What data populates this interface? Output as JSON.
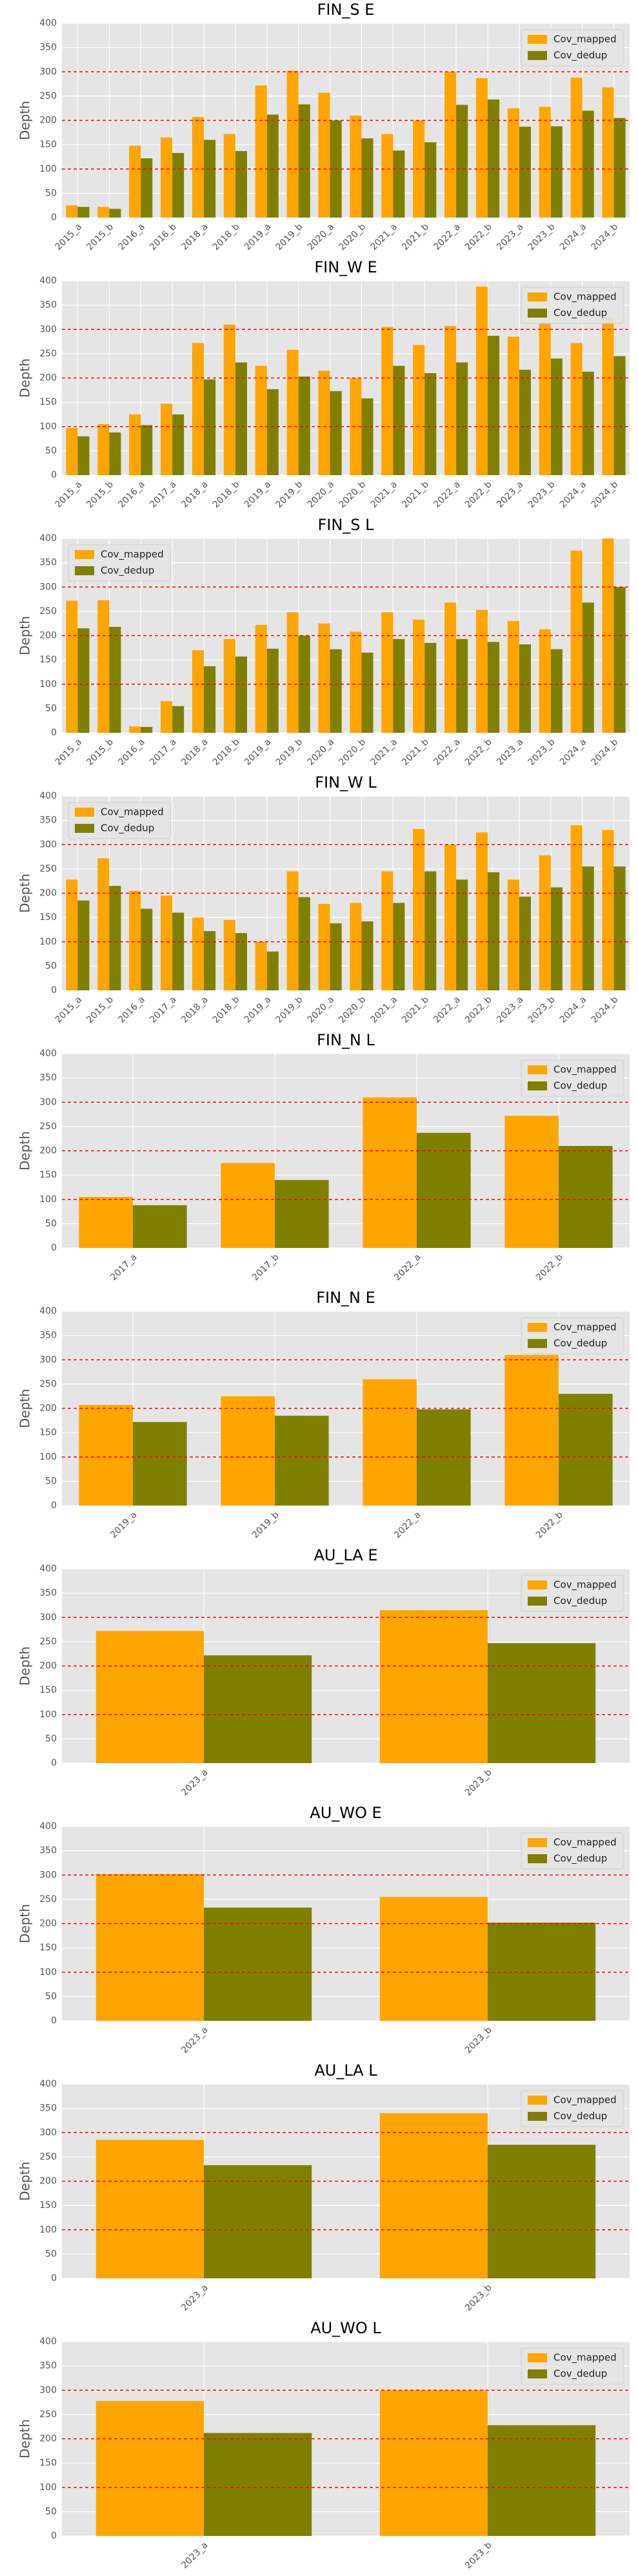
{
  "chart_data": [
    {
      "type": "bar",
      "title": "FIN_S E",
      "ylabel": "Depth",
      "legend": "upper right",
      "grid": true,
      "ylim": [
        0,
        400
      ],
      "yticks": [
        0,
        50,
        100,
        150,
        200,
        250,
        300,
        350,
        400
      ],
      "reference_lines": [
        100,
        200,
        300
      ],
      "reference_line_color": "#ff0000",
      "categories": [
        "2015_a",
        "2015_b",
        "2016_a",
        "2016_b",
        "2018_a",
        "2018_b",
        "2019_a",
        "2019_b",
        "2020_a",
        "2020_b",
        "2021_a",
        "2021_b",
        "2022_a",
        "2022_b",
        "2023_a",
        "2023_b",
        "2024_a",
        "2024_b"
      ],
      "series": [
        {
          "name": "Cov_mapped",
          "color": "#ffa500",
          "values": [
            25,
            22,
            148,
            165,
            207,
            172,
            272,
            302,
            257,
            210,
            172,
            200,
            300,
            287,
            225,
            228,
            288,
            268
          ]
        },
        {
          "name": "Cov_dedup",
          "color": "#808000",
          "values": [
            22,
            18,
            122,
            133,
            160,
            137,
            212,
            233,
            200,
            163,
            138,
            155,
            232,
            243,
            187,
            188,
            220,
            205
          ]
        }
      ]
    },
    {
      "type": "bar",
      "title": "FIN_W E",
      "ylabel": "Depth",
      "legend": "upper right",
      "grid": true,
      "ylim": [
        0,
        400
      ],
      "yticks": [
        0,
        50,
        100,
        150,
        200,
        250,
        300,
        350,
        400
      ],
      "reference_lines": [
        100,
        200,
        300
      ],
      "reference_line_color": "#ff0000",
      "categories": [
        "2015_a",
        "2015_b",
        "2016_a",
        "2017_a",
        "2018_a",
        "2018_b",
        "2019_a",
        "2019_b",
        "2020_a",
        "2020_b",
        "2021_a",
        "2021_b",
        "2022_a",
        "2022_b",
        "2023_a",
        "2023_b",
        "2024_a",
        "2024_b"
      ],
      "series": [
        {
          "name": "Cov_mapped",
          "color": "#ffa500",
          "values": [
            97,
            105,
            125,
            147,
            272,
            310,
            225,
            258,
            215,
            200,
            305,
            268,
            307,
            388,
            285,
            313,
            272,
            325
          ]
        },
        {
          "name": "Cov_dedup",
          "color": "#808000",
          "values": [
            80,
            88,
            103,
            125,
            197,
            232,
            177,
            203,
            173,
            158,
            225,
            210,
            232,
            287,
            217,
            240,
            213,
            245
          ]
        }
      ]
    },
    {
      "type": "bar",
      "title": "FIN_S L",
      "ylabel": "Depth",
      "legend": "upper left",
      "grid": true,
      "ylim": [
        0,
        400
      ],
      "yticks": [
        0,
        50,
        100,
        150,
        200,
        250,
        300,
        350,
        400
      ],
      "reference_lines": [
        100,
        200,
        300
      ],
      "reference_line_color": "#ff0000",
      "categories": [
        "2015_a",
        "2015_b",
        "2016_a",
        "2017_a",
        "2018_a",
        "2018_b",
        "2019_a",
        "2019_b",
        "2020_a",
        "2020_b",
        "2021_a",
        "2021_b",
        "2022_a",
        "2022_b",
        "2023_a",
        "2023_b",
        "2024_a",
        "2024_b"
      ],
      "series": [
        {
          "name": "Cov_mapped",
          "color": "#ffa500",
          "values": [
            272,
            273,
            13,
            65,
            170,
            193,
            222,
            248,
            225,
            208,
            248,
            233,
            268,
            253,
            230,
            213,
            375,
            400
          ]
        },
        {
          "name": "Cov_dedup",
          "color": "#808000",
          "values": [
            215,
            218,
            12,
            55,
            137,
            157,
            173,
            200,
            172,
            165,
            193,
            185,
            193,
            187,
            182,
            172,
            268,
            300
          ]
        }
      ]
    },
    {
      "type": "bar",
      "title": "FIN_W L",
      "ylabel": "Depth",
      "legend": "upper left",
      "grid": true,
      "ylim": [
        0,
        400
      ],
      "yticks": [
        0,
        50,
        100,
        150,
        200,
        250,
        300,
        350,
        400
      ],
      "reference_lines": [
        100,
        200,
        300
      ],
      "reference_line_color": "#ff0000",
      "categories": [
        "2015_a",
        "2015_b",
        "2016_a",
        "2017_a",
        "2018_a",
        "2018_b",
        "2019_a",
        "2019_b",
        "2020_a",
        "2020_b",
        "2021_a",
        "2021_b",
        "2022_a",
        "2022_b",
        "2023_a",
        "2023_b",
        "2024_a",
        "2024_b"
      ],
      "series": [
        {
          "name": "Cov_mapped",
          "color": "#ffa500",
          "values": [
            228,
            272,
            205,
            195,
            150,
            145,
            100,
            245,
            178,
            180,
            245,
            332,
            300,
            325,
            228,
            278,
            340,
            330
          ]
        },
        {
          "name": "Cov_dedup",
          "color": "#808000",
          "values": [
            185,
            215,
            168,
            160,
            122,
            118,
            80,
            192,
            138,
            142,
            180,
            245,
            228,
            243,
            193,
            212,
            255,
            255
          ]
        }
      ]
    },
    {
      "type": "bar",
      "title": "FIN_N L",
      "ylabel": "Depth",
      "legend": "upper right",
      "grid": true,
      "ylim": [
        0,
        400
      ],
      "yticks": [
        0,
        50,
        100,
        150,
        200,
        250,
        300,
        350,
        400
      ],
      "reference_lines": [
        100,
        200,
        300
      ],
      "reference_line_color": "#ff0000",
      "categories": [
        "2017_a",
        "2017_b",
        "2022_a",
        "2022_b"
      ],
      "series": [
        {
          "name": "Cov_mapped",
          "color": "#ffa500",
          "values": [
            105,
            175,
            310,
            272
          ]
        },
        {
          "name": "Cov_dedup",
          "color": "#808000",
          "values": [
            88,
            140,
            237,
            210
          ]
        }
      ]
    },
    {
      "type": "bar",
      "title": "FIN_N E",
      "ylabel": "Depth",
      "legend": "upper right",
      "grid": true,
      "ylim": [
        0,
        400
      ],
      "yticks": [
        0,
        50,
        100,
        150,
        200,
        250,
        300,
        350,
        400
      ],
      "reference_lines": [
        100,
        200,
        300
      ],
      "reference_line_color": "#ff0000",
      "categories": [
        "2019_a",
        "2019_b",
        "2022_a",
        "2022_b"
      ],
      "series": [
        {
          "name": "Cov_mapped",
          "color": "#ffa500",
          "values": [
            207,
            225,
            260,
            310
          ]
        },
        {
          "name": "Cov_dedup",
          "color": "#808000",
          "values": [
            172,
            185,
            198,
            230
          ]
        }
      ]
    },
    {
      "type": "bar",
      "title": "AU_LA E",
      "ylabel": "Depth",
      "legend": "upper right",
      "grid": true,
      "ylim": [
        0,
        400
      ],
      "yticks": [
        0,
        50,
        100,
        150,
        200,
        250,
        300,
        350,
        400
      ],
      "reference_lines": [
        100,
        200,
        300
      ],
      "reference_line_color": "#ff0000",
      "categories": [
        "2023_a",
        "2023_b"
      ],
      "series": [
        {
          "name": "Cov_mapped",
          "color": "#ffa500",
          "values": [
            272,
            315
          ]
        },
        {
          "name": "Cov_dedup",
          "color": "#808000",
          "values": [
            222,
            247
          ]
        }
      ]
    },
    {
      "type": "bar",
      "title": "AU_WO E",
      "ylabel": "Depth",
      "legend": "upper right",
      "grid": true,
      "ylim": [
        0,
        400
      ],
      "yticks": [
        0,
        50,
        100,
        150,
        200,
        250,
        300,
        350,
        400
      ],
      "reference_lines": [
        100,
        200,
        300
      ],
      "reference_line_color": "#ff0000",
      "categories": [
        "2023_a",
        "2023_b"
      ],
      "series": [
        {
          "name": "Cov_mapped",
          "color": "#ffa500",
          "values": [
            302,
            255
          ]
        },
        {
          "name": "Cov_dedup",
          "color": "#808000",
          "values": [
            233,
            202
          ]
        }
      ]
    },
    {
      "type": "bar",
      "title": "AU_LA L",
      "ylabel": "Depth",
      "legend": "upper right",
      "grid": true,
      "ylim": [
        0,
        400
      ],
      "yticks": [
        0,
        50,
        100,
        150,
        200,
        250,
        300,
        350,
        400
      ],
      "reference_lines": [
        100,
        200,
        300
      ],
      "reference_line_color": "#ff0000",
      "categories": [
        "2023_a",
        "2023_b"
      ],
      "series": [
        {
          "name": "Cov_mapped",
          "color": "#ffa500",
          "values": [
            285,
            340
          ]
        },
        {
          "name": "Cov_dedup",
          "color": "#808000",
          "values": [
            233,
            275
          ]
        }
      ]
    },
    {
      "type": "bar",
      "title": "AU_WO L",
      "ylabel": "Depth",
      "legend": "upper right",
      "grid": true,
      "ylim": [
        0,
        400
      ],
      "yticks": [
        0,
        50,
        100,
        150,
        200,
        250,
        300,
        350,
        400
      ],
      "reference_lines": [
        100,
        200,
        300
      ],
      "reference_line_color": "#ff0000",
      "categories": [
        "2023_a",
        "2023_b"
      ],
      "series": [
        {
          "name": "Cov_mapped",
          "color": "#ffa500",
          "values": [
            278,
            300
          ]
        },
        {
          "name": "Cov_dedup",
          "color": "#808000",
          "values": [
            212,
            228
          ]
        }
      ]
    }
  ]
}
